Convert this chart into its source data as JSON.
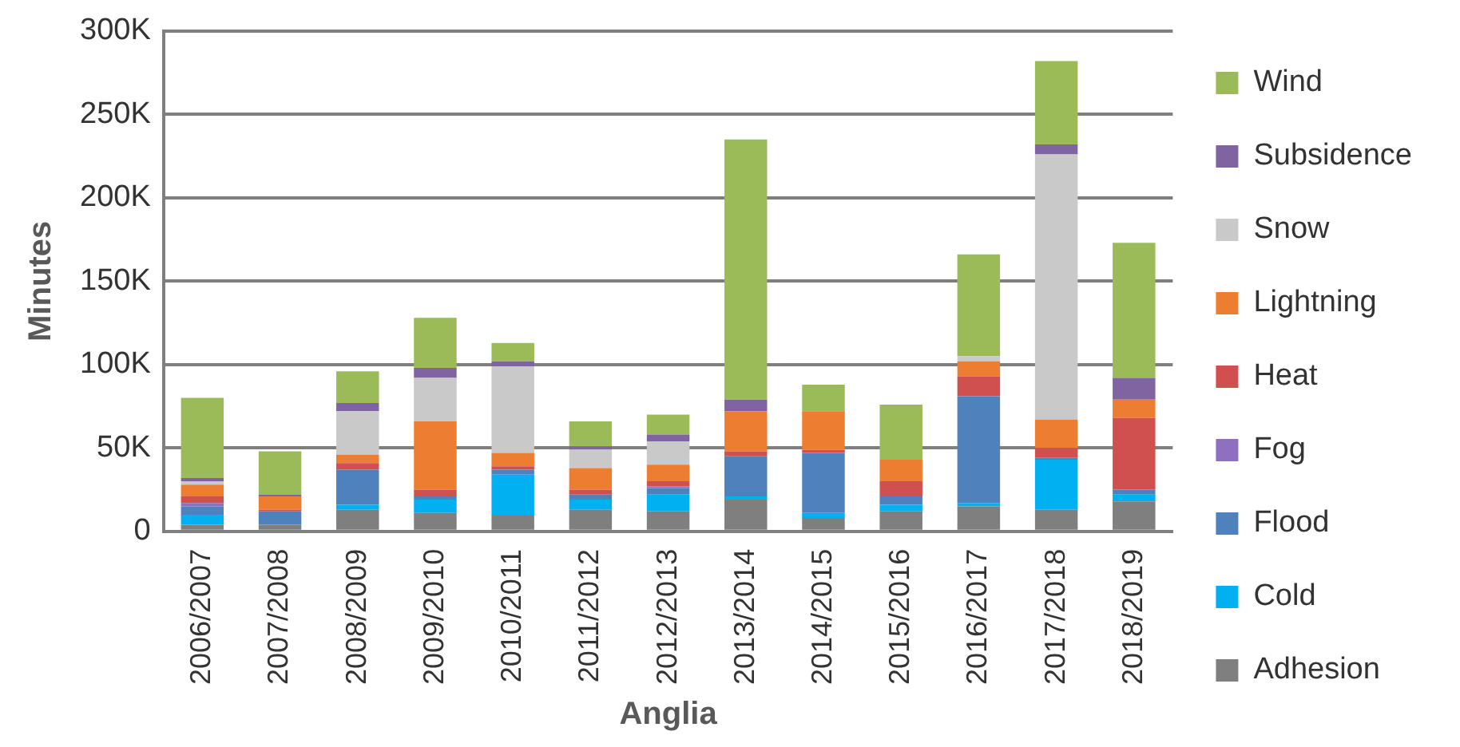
{
  "chart_data": {
    "type": "bar",
    "stacked": true,
    "xlabel": "Anglia",
    "ylabel": "Minutes",
    "categories": [
      "2006/2007",
      "2007/2008",
      "2008/2009",
      "2009/2010",
      "2010/2011",
      "2011/2012",
      "2012/2013",
      "2013/2014",
      "2014/2015",
      "2015/2016",
      "2016/2017",
      "2017/2018",
      "2018/2019"
    ],
    "series": [
      {
        "name": "Adhesion",
        "color": "#7f7f7f",
        "values": [
          4,
          4,
          13,
          11,
          10,
          13,
          12,
          19,
          8,
          12,
          15,
          13,
          18
        ]
      },
      {
        "name": "Cold",
        "color": "#00b0f0",
        "values": [
          6,
          0,
          3,
          8,
          24,
          6,
          10,
          2,
          3,
          4,
          2,
          30,
          4
        ]
      },
      {
        "name": "Flood",
        "color": "#4f81bd",
        "values": [
          5,
          8,
          21,
          2,
          3,
          3,
          4,
          24,
          36,
          5,
          64,
          1,
          3
        ]
      },
      {
        "name": "Fog",
        "color": "#8f6fc0",
        "values": [
          2,
          0,
          0,
          0,
          0,
          0,
          1,
          0,
          0,
          0,
          0,
          0,
          0
        ]
      },
      {
        "name": "Heat",
        "color": "#d0504f",
        "values": [
          4,
          1,
          4,
          4,
          2,
          3,
          3,
          3,
          2,
          9,
          12,
          6,
          43
        ]
      },
      {
        "name": "Lightning",
        "color": "#ed7d31",
        "values": [
          7,
          8,
          5,
          41,
          8,
          13,
          10,
          24,
          23,
          13,
          9,
          17,
          11
        ]
      },
      {
        "name": "Snow",
        "color": "#c9c9c9",
        "values": [
          2,
          0,
          26,
          26,
          52,
          11,
          14,
          0,
          0,
          0,
          3,
          159,
          0
        ]
      },
      {
        "name": "Subsidence",
        "color": "#8064a2",
        "values": [
          2,
          1,
          5,
          6,
          3,
          2,
          4,
          7,
          0,
          0,
          0,
          6,
          13
        ]
      },
      {
        "name": "Wind",
        "color": "#9bbb59",
        "values": [
          48,
          26,
          19,
          30,
          11,
          15,
          12,
          156,
          16,
          33,
          61,
          50,
          81
        ]
      }
    ],
    "ylim": [
      0,
      300
    ],
    "yticks": [
      {
        "value": 0,
        "label": "0"
      },
      {
        "value": 50,
        "label": "50K"
      },
      {
        "value": 100,
        "label": "100K"
      },
      {
        "value": 150,
        "label": "150K"
      },
      {
        "value": 200,
        "label": "200K"
      },
      {
        "value": 250,
        "label": "250K"
      },
      {
        "value": 300,
        "label": "300K"
      }
    ],
    "grid": "y",
    "legend": "right"
  }
}
